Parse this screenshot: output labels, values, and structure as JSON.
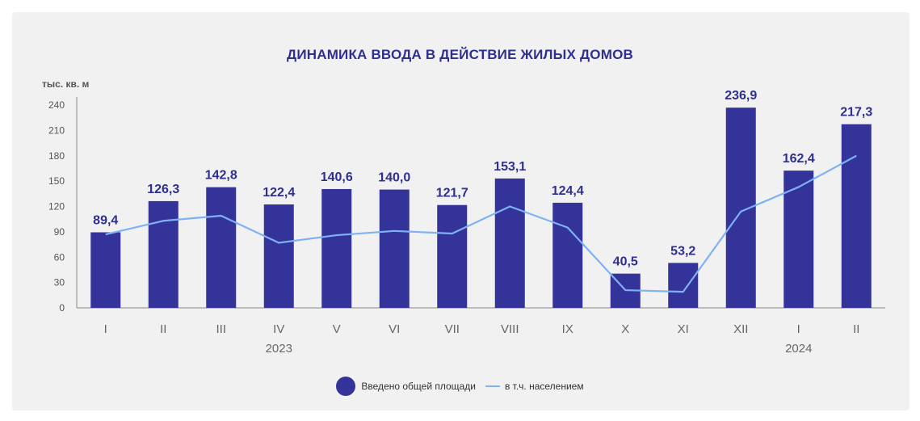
{
  "chart_data": {
    "type": "bar",
    "title": "ДИНАМИКА ВВОДА В ДЕЙСТВИЕ ЖИЛЫХ ДОМОВ",
    "ylabel": "тыс. кв. м",
    "xlabel": "",
    "ylim": [
      0,
      240
    ],
    "yticks": [
      "0",
      "30",
      "60",
      "90",
      "120",
      "150",
      "180",
      "210",
      "240"
    ],
    "categories": [
      "I",
      "II",
      "III",
      "IV",
      "V",
      "VI",
      "VII",
      "VIII",
      "IX",
      "X",
      "XI",
      "XII",
      "I",
      "II"
    ],
    "year_labels": [
      {
        "label": "2023",
        "category_index": 3
      },
      {
        "label": "2024",
        "category_index": 12
      }
    ],
    "grid": false,
    "legend_position": "bottom",
    "series": [
      {
        "name": "Введено общей площади",
        "type": "bar",
        "color": "#333399",
        "values": [
          89.4,
          126.3,
          142.8,
          122.4,
          140.6,
          140.0,
          121.7,
          153.1,
          124.4,
          40.5,
          53.2,
          236.9,
          162.4,
          217.3
        ],
        "value_labels": [
          "89,4",
          "126,3",
          "142,8",
          "122,4",
          "140,6",
          "140,0",
          "121,7",
          "153,1",
          "124,4",
          "40,5",
          "53,2",
          "236,9",
          "162,4",
          "217,3"
        ]
      },
      {
        "name": "в т.ч. населением",
        "type": "line",
        "color": "#7fb2f5",
        "values": [
          87,
          103,
          109,
          77,
          86,
          91,
          88,
          120,
          95,
          21,
          19,
          114,
          143,
          180
        ]
      }
    ]
  }
}
